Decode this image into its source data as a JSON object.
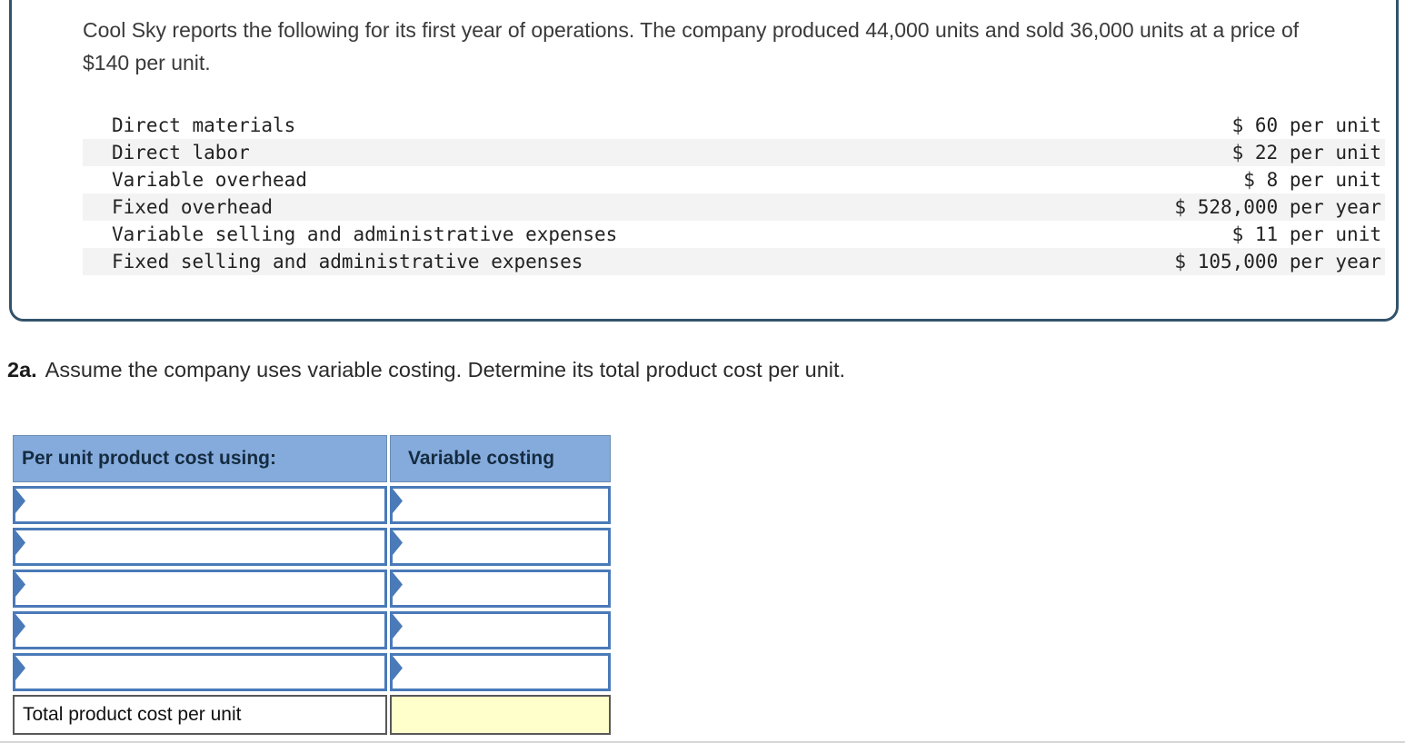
{
  "problem": {
    "intro": "Cool Sky reports the following for its first year of operations. The company produced 44,000 units and sold 36,000 units at a price of $140 per unit.",
    "costs": [
      {
        "label": "Direct materials",
        "value": "$ 60 per unit"
      },
      {
        "label": "Direct labor",
        "value": "$ 22 per unit"
      },
      {
        "label": "Variable overhead",
        "value": "$ 8 per unit"
      },
      {
        "label": "Fixed overhead",
        "value": "$ 528,000 per year"
      },
      {
        "label": "Variable selling and administrative expenses",
        "value": "$ 11 per unit"
      },
      {
        "label": "Fixed selling and administrative expenses",
        "value": "$ 105,000 per year"
      }
    ]
  },
  "question": {
    "number": "2a.",
    "text": "Assume the company uses variable costing. Determine its total product cost per unit."
  },
  "answer_table": {
    "headers": {
      "col1": "Per unit product cost using:",
      "col2": "Variable costing"
    },
    "empty_row_count": 5,
    "total_row": {
      "label": "Total product cost per unit",
      "value": ""
    }
  },
  "colors": {
    "header_blue": "#85abdc",
    "cell_border_blue": "#4a7ab8",
    "highlight_yellow": "#ffffcc",
    "box_border": "#33536b",
    "row_shade": "#f3f3f3"
  }
}
